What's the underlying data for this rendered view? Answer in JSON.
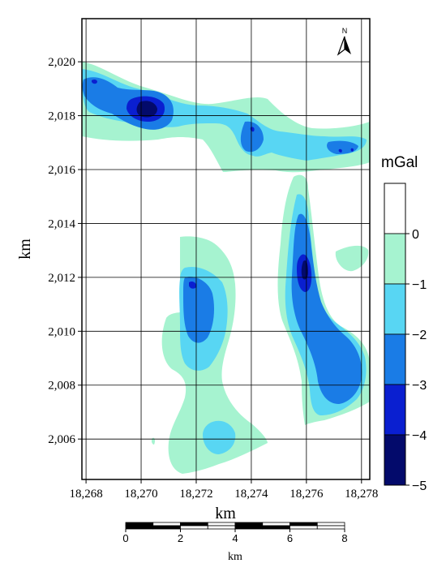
{
  "map": {
    "x_axis": {
      "label": "km",
      "ticks": [
        "18,268",
        "18,270",
        "18,272",
        "18,274",
        "18,276",
        "18,278"
      ],
      "tick_values": [
        18268,
        18270,
        18272,
        18274,
        18276,
        18278
      ],
      "range": [
        18267.85,
        18278.3
      ]
    },
    "y_axis": {
      "label": "km",
      "ticks": [
        "2,020",
        "2,018",
        "2,016",
        "2,014",
        "2,012",
        "2,010",
        "2,008",
        "2,006"
      ],
      "tick_values": [
        2020,
        2018,
        2016,
        2014,
        2012,
        2010,
        2008,
        2006
      ],
      "range": [
        2004.5,
        2021.6
      ]
    },
    "north_arrow": {
      "label": "N"
    },
    "grid": true
  },
  "legend": {
    "title": "mGal",
    "ticks": [
      "0",
      "−1",
      "−2",
      "−3",
      "−4",
      "−5"
    ],
    "classes": [
      {
        "range": "> 0",
        "color": "#ffffff"
      },
      {
        "range": "0 to −1",
        "color": "#a6f3d0"
      },
      {
        "range": "−1 to −2",
        "color": "#58d6f3"
      },
      {
        "range": "−2 to −3",
        "color": "#1a7ce6"
      },
      {
        "range": "−3 to −4",
        "color": "#0a1fd0"
      },
      {
        "range": "−4 to −5",
        "color": "#030a6b"
      }
    ]
  },
  "scale_bar": {
    "ticks": [
      "0",
      "2",
      "4",
      "6",
      "8"
    ],
    "unit": "km"
  }
}
